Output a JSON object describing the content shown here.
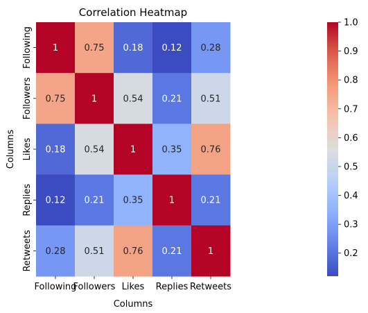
{
  "chart_data": {
    "type": "heatmap",
    "title": "Correlation Heatmap",
    "xlabel": "Columns",
    "ylabel": "Columns",
    "x_categories": [
      "Following",
      "Followers",
      "Likes",
      "Replies",
      "Retweets"
    ],
    "y_categories": [
      "Following",
      "Followers",
      "Likes",
      "Replies",
      "Retweets"
    ],
    "values": [
      [
        1,
        0.75,
        0.18,
        0.12,
        0.28
      ],
      [
        0.75,
        1,
        0.54,
        0.21,
        0.51
      ],
      [
        0.18,
        0.54,
        1,
        0.35,
        0.76
      ],
      [
        0.12,
        0.21,
        0.35,
        1,
        0.21
      ],
      [
        0.28,
        0.51,
        0.76,
        0.21,
        1
      ]
    ],
    "annotations": [
      [
        "1",
        "0.75",
        "0.18",
        "0.12",
        "0.28"
      ],
      [
        "0.75",
        "1",
        "0.54",
        "0.21",
        "0.51"
      ],
      [
        "0.18",
        "0.54",
        "1",
        "0.35",
        "0.76"
      ],
      [
        "0.12",
        "0.21",
        "0.35",
        "1",
        "0.21"
      ],
      [
        "0.28",
        "0.51",
        "0.76",
        "0.21",
        "1"
      ]
    ],
    "colormap": "coolwarm",
    "colorbar": {
      "vmin": 0.12,
      "vmax": 1.0,
      "ticks": [
        0.2,
        0.3,
        0.4,
        0.5,
        0.6,
        0.7,
        0.8,
        0.9,
        1.0
      ],
      "tick_labels": [
        "0.2",
        "0.3",
        "0.4",
        "0.5",
        "0.6",
        "0.7",
        "0.8",
        "0.9",
        "1.0"
      ]
    }
  }
}
